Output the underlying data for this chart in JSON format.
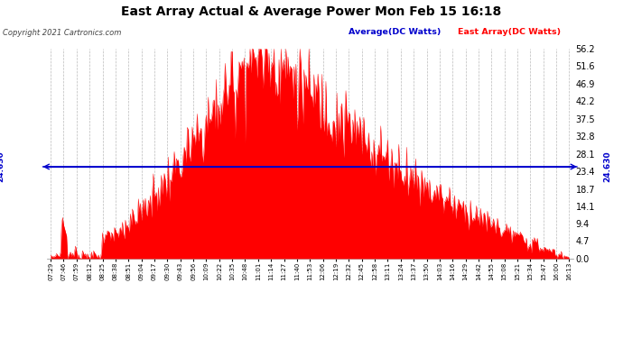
{
  "title": "East Array Actual & Average Power Mon Feb 15 16:18",
  "copyright": "Copyright 2021 Cartronics.com",
  "legend_avg": "Average(DC Watts)",
  "legend_east": "East Array(DC Watts)",
  "avg_value": 24.63,
  "ymin": 0.0,
  "ymax": 56.2,
  "yticks": [
    0.0,
    4.7,
    9.4,
    14.1,
    18.7,
    23.4,
    28.1,
    32.8,
    37.5,
    42.2,
    46.9,
    51.6,
    56.2
  ],
  "fill_color": "#ff0000",
  "avg_line_color": "#0000cc",
  "title_color": "#000000",
  "copyright_color": "#000000",
  "legend_avg_color": "#0000cc",
  "legend_east_color": "#ff0000",
  "background_color": "#ffffff",
  "grid_color": "#aaaaaa",
  "xtick_labels": [
    "07:29",
    "07:46",
    "07:59",
    "08:12",
    "08:25",
    "08:38",
    "08:51",
    "09:04",
    "09:17",
    "09:30",
    "09:43",
    "09:56",
    "10:09",
    "10:22",
    "10:35",
    "10:48",
    "11:01",
    "11:14",
    "11:27",
    "11:40",
    "11:53",
    "12:06",
    "12:19",
    "12:32",
    "12:45",
    "12:58",
    "13:11",
    "13:24",
    "13:37",
    "13:50",
    "14:03",
    "14:16",
    "14:29",
    "14:42",
    "14:55",
    "15:08",
    "15:21",
    "15:34",
    "15:47",
    "16:00",
    "16:13"
  ]
}
